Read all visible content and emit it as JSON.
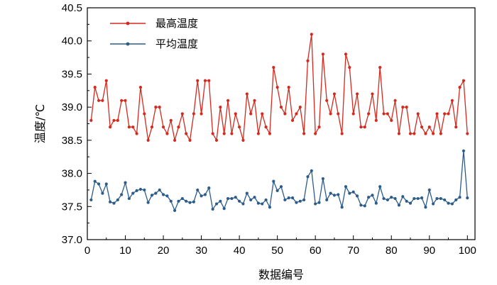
{
  "chart_data": {
    "type": "line",
    "xlabel": "数据编号",
    "ylabel": "温度/℃",
    "xlim": [
      0,
      102
    ],
    "ylim": [
      37.0,
      40.5
    ],
    "xticks": [
      0,
      10,
      20,
      30,
      40,
      50,
      60,
      70,
      80,
      90,
      100
    ],
    "xtick_labels": [
      "0",
      "10",
      "20",
      "30",
      "40",
      "50",
      "60",
      "70",
      "80",
      "90",
      "100"
    ],
    "yticks": [
      37.0,
      37.5,
      38.0,
      38.5,
      39.0,
      39.5,
      40.0,
      40.5
    ],
    "ytick_labels": [
      "37.0",
      "37.5",
      "38.0",
      "38.5",
      "39.0",
      "39.5",
      "40.0",
      "40.5"
    ],
    "grid": false,
    "legend_position": "top-left",
    "x": [
      1,
      2,
      3,
      4,
      5,
      6,
      7,
      8,
      9,
      10,
      11,
      12,
      13,
      14,
      15,
      16,
      17,
      18,
      19,
      20,
      21,
      22,
      23,
      24,
      25,
      26,
      27,
      28,
      29,
      30,
      31,
      32,
      33,
      34,
      35,
      36,
      37,
      38,
      39,
      40,
      41,
      42,
      43,
      44,
      45,
      46,
      47,
      48,
      49,
      50,
      51,
      52,
      53,
      54,
      55,
      56,
      57,
      58,
      59,
      60,
      61,
      62,
      63,
      64,
      65,
      66,
      67,
      68,
      69,
      70,
      71,
      72,
      73,
      74,
      75,
      76,
      77,
      78,
      79,
      80,
      81,
      82,
      83,
      84,
      85,
      86,
      87,
      88,
      89,
      90,
      91,
      92,
      93,
      94,
      95,
      96,
      97,
      98,
      99,
      100
    ],
    "series": [
      {
        "name": "最高温度",
        "color": "#d42a1e",
        "values": [
          38.8,
          39.3,
          39.1,
          39.1,
          39.4,
          38.7,
          38.8,
          38.8,
          39.1,
          39.1,
          38.7,
          38.7,
          38.6,
          39.3,
          38.9,
          38.5,
          38.7,
          39.0,
          39.0,
          38.7,
          38.6,
          38.8,
          38.5,
          38.7,
          38.9,
          38.6,
          38.5,
          38.9,
          39.4,
          38.9,
          39.4,
          39.4,
          38.6,
          38.5,
          39.0,
          38.6,
          39.1,
          38.6,
          38.9,
          38.7,
          38.5,
          39.2,
          38.9,
          39.1,
          38.6,
          38.9,
          38.7,
          38.6,
          39.6,
          39.3,
          39.0,
          38.9,
          39.3,
          38.8,
          38.9,
          39.0,
          38.6,
          39.7,
          40.1,
          38.6,
          38.7,
          39.8,
          39.1,
          38.9,
          39.2,
          38.9,
          38.6,
          39.8,
          39.6,
          38.9,
          39.2,
          38.7,
          38.7,
          38.9,
          39.2,
          38.8,
          39.6,
          38.9,
          38.9,
          38.8,
          39.1,
          38.6,
          39.0,
          39.0,
          38.6,
          38.6,
          38.9,
          38.7,
          38.6,
          38.7,
          38.6,
          38.9,
          38.6,
          38.9,
          38.9,
          39.1,
          38.7,
          39.3,
          39.4,
          38.6
        ]
      },
      {
        "name": "平均温度",
        "color": "#2c5d8a",
        "values": [
          37.6,
          37.88,
          37.84,
          37.7,
          37.84,
          37.57,
          37.55,
          37.6,
          37.68,
          37.86,
          37.62,
          37.7,
          37.74,
          37.76,
          37.75,
          37.56,
          37.67,
          37.7,
          37.75,
          37.68,
          37.66,
          37.58,
          37.44,
          37.58,
          37.62,
          37.58,
          37.56,
          37.57,
          37.75,
          37.66,
          37.68,
          37.78,
          37.46,
          37.54,
          37.58,
          37.47,
          37.62,
          37.62,
          37.64,
          37.58,
          37.54,
          37.7,
          37.6,
          37.64,
          37.55,
          37.54,
          37.6,
          37.49,
          37.88,
          37.74,
          37.8,
          37.6,
          37.63,
          37.63,
          37.56,
          37.58,
          37.6,
          37.95,
          38.04,
          37.54,
          37.56,
          37.92,
          37.6,
          37.7,
          37.67,
          37.68,
          37.49,
          37.8,
          37.7,
          37.72,
          37.66,
          37.52,
          37.51,
          37.64,
          37.67,
          37.55,
          37.8,
          37.62,
          37.6,
          37.64,
          37.62,
          37.52,
          37.65,
          37.58,
          37.55,
          37.62,
          37.62,
          37.63,
          37.49,
          37.75,
          37.54,
          37.62,
          37.62,
          37.6,
          37.55,
          37.54,
          37.6,
          37.64,
          38.34,
          37.63
        ]
      }
    ]
  }
}
